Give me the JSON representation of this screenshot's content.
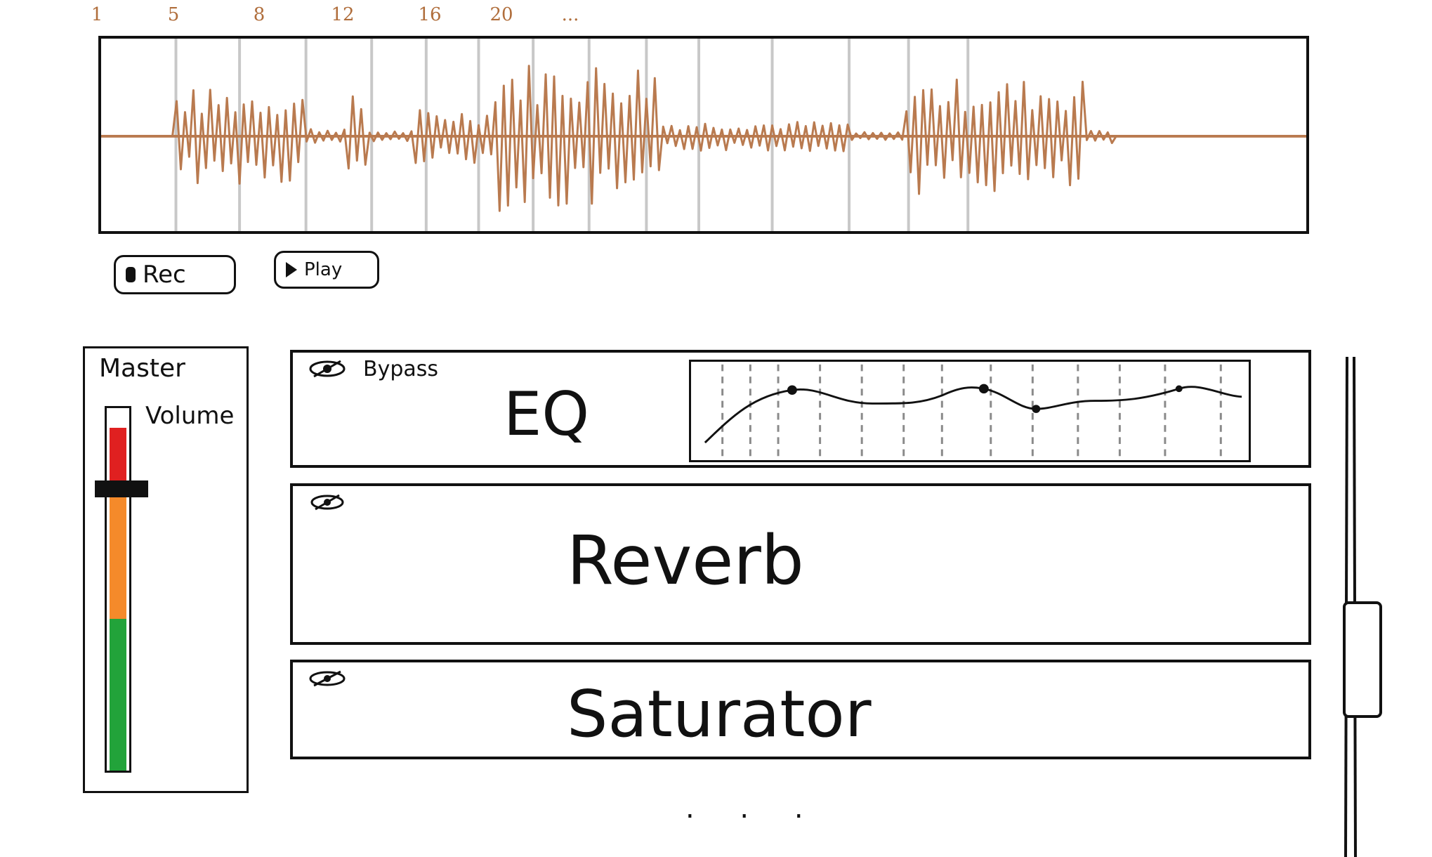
{
  "ruler": {
    "marks": [
      "1",
      "5",
      "8",
      "12",
      "16",
      "20",
      "..."
    ]
  },
  "transport": {
    "rec_label": "Rec",
    "play_label": "Play"
  },
  "master": {
    "title": "Master",
    "volume_label": "Volume",
    "meter_colors": {
      "high": "#e02020",
      "mid": "#f58a2a",
      "low": "#22a33a"
    }
  },
  "effects": [
    {
      "name": "EQ",
      "bypass_label": "Bypass"
    },
    {
      "name": "Reverb",
      "bypass_label": ""
    },
    {
      "name": "Saturator",
      "bypass_label": ""
    }
  ],
  "more_indicator": ". . .",
  "colors": {
    "waveform": "#b97a4f",
    "grid": "#c8c8c8"
  }
}
